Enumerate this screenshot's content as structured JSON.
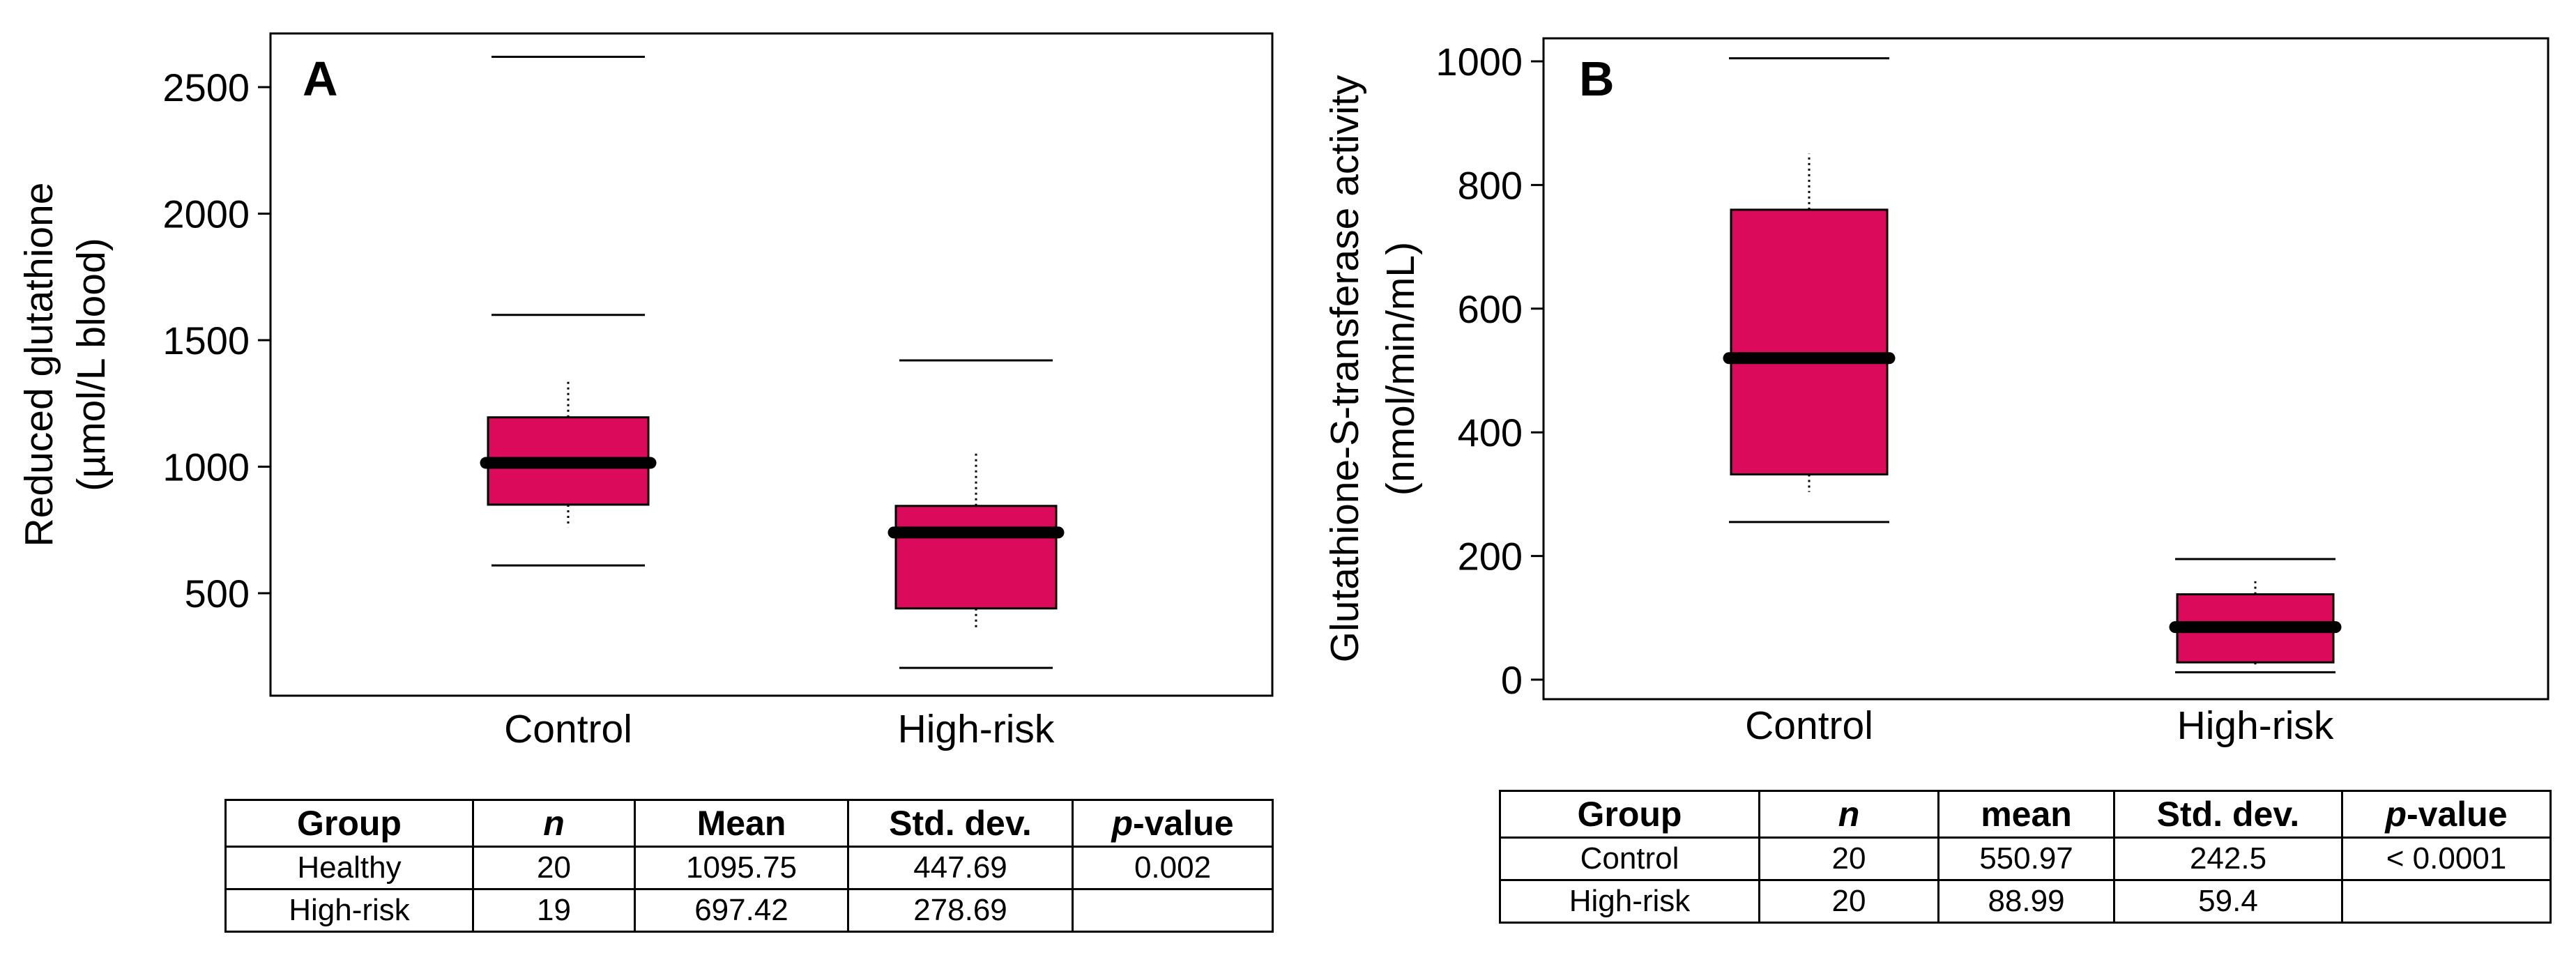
{
  "colors": {
    "box_fill": "#DC0A5A",
    "median": "#000000",
    "frame": "#000000"
  },
  "chart_data": [
    {
      "type": "boxplot",
      "panel_label": "A",
      "ylabel": "Reduced glutathione\n(µmol/L blood)",
      "ylim": [
        100,
        2750
      ],
      "yticks": [
        500,
        1000,
        1500,
        2000,
        2500
      ],
      "categories": [
        "Control",
        "High-risk"
      ],
      "boxes": [
        {
          "category": "Control",
          "min": 610,
          "q1": 850,
          "median": 1015,
          "q3": 1195,
          "max": 1600,
          "outliers": [
            2620
          ]
        },
        {
          "category": "High-risk",
          "min": 205,
          "q1": 440,
          "median": 740,
          "q3": 845,
          "max": 1420,
          "outliers": []
        }
      ]
    },
    {
      "type": "boxplot",
      "panel_label": "B",
      "ylabel": "Glutathione-S-transferase activity\n(nmol/min/mL)",
      "ylim": [
        -30,
        1050
      ],
      "yticks": [
        0,
        200,
        400,
        600,
        800,
        1000
      ],
      "categories": [
        "Control",
        "High-risk"
      ],
      "boxes": [
        {
          "category": "Control",
          "min": 255,
          "q1": 332,
          "median": 520,
          "q3": 760,
          "max": 1005,
          "outliers": []
        },
        {
          "category": "High-risk",
          "min": 12,
          "q1": 28,
          "median": 85,
          "q3": 138,
          "max": 195,
          "outliers": []
        }
      ]
    }
  ],
  "tables": [
    {
      "headers": [
        "Group",
        "n",
        "Mean",
        "Std. dev.",
        "p-value"
      ],
      "rows": [
        [
          "Healthy",
          "20",
          "1095.75",
          "447.69",
          "0.002"
        ],
        [
          "High-risk",
          "19",
          "697.42",
          "278.69",
          ""
        ]
      ]
    },
    {
      "headers": [
        "Group",
        "n",
        "mean",
        "Std. dev.",
        "p-value"
      ],
      "rows": [
        [
          "Control",
          "20",
          "550.97",
          "242.5",
          "< 0.0001"
        ],
        [
          "High-risk",
          "20",
          "88.99",
          "59.4",
          ""
        ]
      ]
    }
  ]
}
